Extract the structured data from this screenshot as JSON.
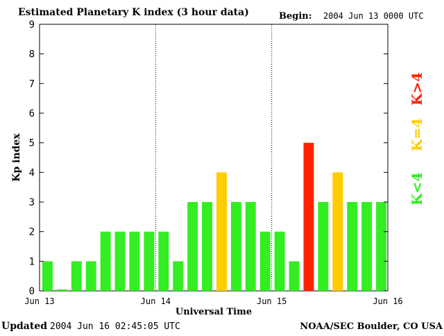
{
  "chart_data": {
    "type": "bar",
    "title": "Estimated Planetary K index (3 hour data)",
    "begin_label": "Begin:",
    "begin_value": "2004 Jun 13 0000 UTC",
    "ylabel": "Kp index",
    "xlabel": "Universal Time",
    "ylim": [
      0,
      9
    ],
    "y_ticks": [
      "0",
      "1",
      "2",
      "3",
      "4",
      "5",
      "6",
      "7",
      "8",
      "9"
    ],
    "x_ticks": [
      "Jun 13",
      "Jun 14",
      "Jun 15",
      "Jun 16"
    ],
    "grid": "vertical dotted lines at day boundaries",
    "values": [
      1,
      0.05,
      1,
      1,
      2,
      2,
      2,
      2,
      2,
      1,
      3,
      3,
      4,
      3,
      3,
      2,
      2,
      1,
      5,
      3,
      4,
      3,
      3,
      3
    ],
    "colors": {
      "below_4": "#33ee22",
      "equal_4": "#ffcc00",
      "above_4": "#ff2200"
    },
    "legend": [
      {
        "label": "K>4",
        "color": "#ff2200"
      },
      {
        "label": "K=4",
        "color": "#ffcc00"
      },
      {
        "label": "K<4",
        "color": "#33ee22"
      }
    ],
    "legend_placement": "right"
  },
  "footer": {
    "updated_label": "Updated",
    "updated_value": "2004 Jun 16 02:45:05 UTC",
    "source": "NOAA/SEC Boulder, CO USA"
  }
}
